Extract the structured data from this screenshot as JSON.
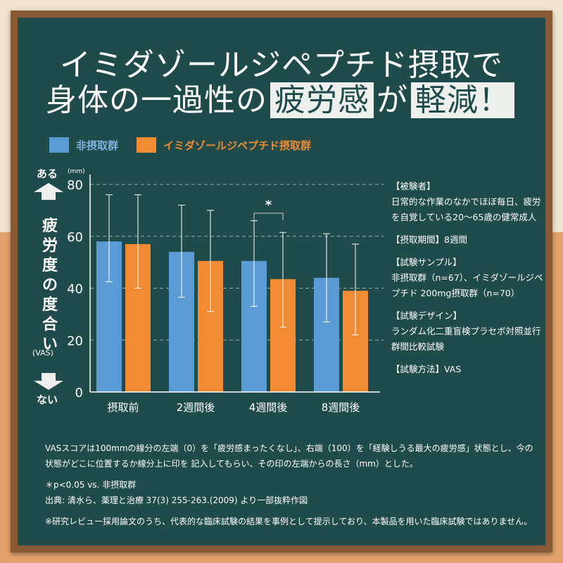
{
  "title": {
    "line1": "イミダゾールジペプチド摂取で",
    "line2_a": "身体の一過性の",
    "line2_hl1": "疲労感",
    "line2_b": "が",
    "line2_hl2": "軽減！"
  },
  "colors": {
    "board": "#1f4b4b",
    "blue": "#5b9bd5",
    "orange": "#f08a33"
  },
  "y_axis_side": {
    "top": "ある",
    "bottom": "ない",
    "label": "疲労度の度合い",
    "sub": "(VAS)",
    "up_icon": "arrow-up-icon",
    "down_icon": "arrow-down-icon"
  },
  "chart_data": {
    "type": "bar",
    "categories": [
      "摂取前",
      "2週間後",
      "4週間後",
      "8週間後"
    ],
    "series": [
      {
        "name": "非摂取群",
        "color": "#5b9bd5",
        "values": [
          58,
          54,
          50.5,
          44
        ],
        "error_high": [
          76,
          72,
          66,
          61
        ],
        "error_low": [
          42.5,
          36.5,
          33,
          27
        ]
      },
      {
        "name": "イミダゾールジペプチド摂取群",
        "color": "#f08a33",
        "values": [
          57,
          50.5,
          43.5,
          39
        ],
        "error_high": [
          76,
          70,
          61.5,
          57
        ],
        "error_low": [
          40,
          31,
          25,
          22
        ]
      }
    ],
    "yunit": "(mm)",
    "ylim": [
      0,
      80
    ],
    "yticks": [
      "0",
      "20",
      "40",
      "60",
      "80"
    ],
    "grid": true,
    "legend": "top-left",
    "significance": {
      "category": "4週間後",
      "mark": "*"
    }
  },
  "side": {
    "subjects_h": "【被験者】",
    "subjects": "日常的な作業のなかでほぼ毎日、疲労を自覚している20〜65歳の健常成人",
    "period_h": "【摂取期間】",
    "period": "8週間",
    "sample_h": "【試験サンプル】",
    "sample": "非摂取群（n=67）、イミダゾールジペプチド 200mg摂取群（n=70）",
    "design_h": "【試験デザイン】",
    "design": "ランダム化二重盲検プラセボ対照並行群間比較試験",
    "method_h": "【試験方法】",
    "method": "VAS"
  },
  "notes": {
    "vas": "VASスコアは100mmの線分の左端（0）を「疲労感まったくなし」、右端（100）を「経験しうる最大の疲労感」状態とし、今の状態がどこに位置するか線分上に印を 記入してもらい、その印の左端からの長さ（mm）とした。",
    "sig": "＊p<0.05 vs. 非摂取群",
    "source": "出典: 清水ら、薬理と治療 37(3) 255-263.(2009) より一部抜粋作図",
    "disclaimer": "※研究レビュー採用論文のうち、代表的な臨床試験の結果を事例として提示しており、本製品を用いた臨床試験ではありません。"
  }
}
